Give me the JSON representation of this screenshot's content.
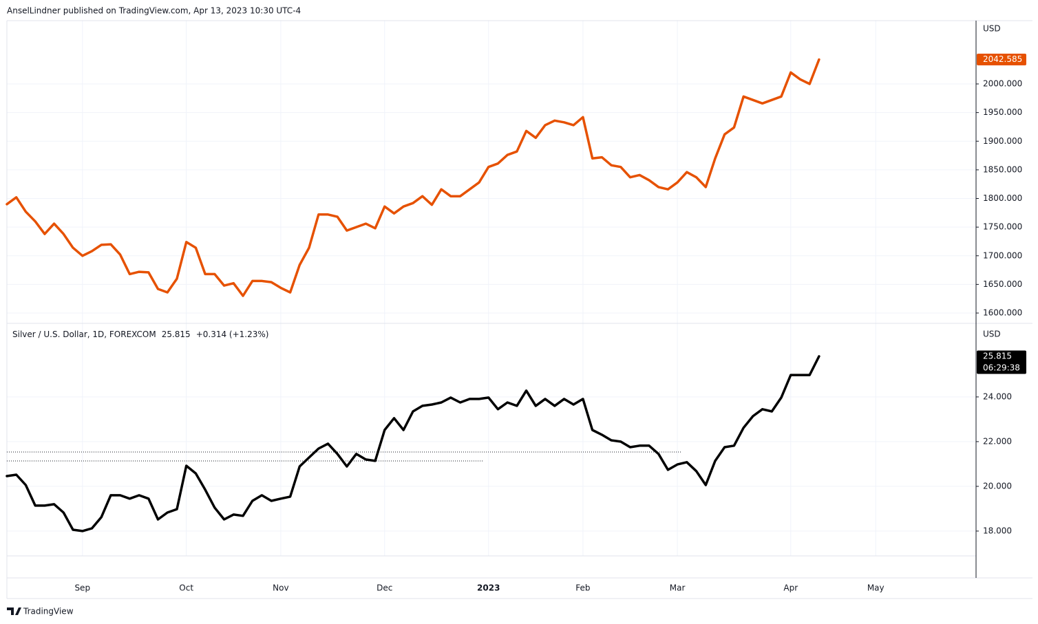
{
  "header": "AnselLindner published on TradingView.com, Apr 13, 2023 10:30 UTC-4",
  "footer": "TradingView",
  "chart_data": [
    {
      "type": "line",
      "y_axis_label": "USD",
      "series": [
        {
          "color": "#e65100",
          "values": [
            1790,
            1802,
            1777,
            1760,
            1738,
            1756,
            1738,
            1714,
            1700,
            1708,
            1719,
            1720,
            1702,
            1668,
            1672,
            1671,
            1642,
            1636,
            1660,
            1724,
            1714,
            1668,
            1668,
            1648,
            1652,
            1630,
            1656,
            1656,
            1654,
            1644,
            1636,
            1684,
            1714,
            1772,
            1772,
            1768,
            1744,
            1750,
            1756,
            1748,
            1786,
            1774,
            1786,
            1792,
            1804,
            1789,
            1816,
            1804,
            1804,
            1816,
            1828,
            1855,
            1861,
            1876,
            1882,
            1918,
            1906,
            1928,
            1936,
            1933,
            1928,
            1942,
            1870,
            1872,
            1858,
            1855,
            1837,
            1841,
            1832,
            1820,
            1816,
            1828,
            1846,
            1837,
            1820,
            1870,
            1912,
            1924,
            1978,
            1972,
            1966,
            1972,
            1978,
            2020,
            2008,
            2000,
            2042.585,
            null,
            null,
            null,
            null,
            null,
            null,
            null,
            null,
            null,
            null,
            null,
            null,
            null,
            null,
            null,
            null
          ]
        }
      ],
      "last_price_label": "2042.585",
      "ylim": [
        1582,
        2110.5
      ],
      "yticks": [
        {
          "value": 1600,
          "label": "1600.000"
        },
        {
          "value": 1650,
          "label": "1650.000"
        },
        {
          "value": 1700,
          "label": "1700.000"
        },
        {
          "value": 1750,
          "label": "1750.000"
        },
        {
          "value": 1800,
          "label": "1800.000"
        },
        {
          "value": 1850,
          "label": "1850.000"
        },
        {
          "value": 1900,
          "label": "1900.000"
        },
        {
          "value": 1950,
          "label": "1950.000"
        },
        {
          "value": 2000,
          "label": "2000.000"
        }
      ],
      "grid": true
    },
    {
      "type": "line",
      "y_axis_label": "USD",
      "categories": [
        null,
        null,
        null,
        null,
        null,
        null,
        null,
        null,
        "Sep",
        null,
        null,
        null,
        null,
        null,
        null,
        null,
        null,
        null,
        null,
        "Oct",
        null,
        null,
        null,
        null,
        null,
        null,
        null,
        null,
        null,
        "Nov",
        null,
        null,
        null,
        null,
        null,
        null,
        null,
        null,
        null,
        null,
        "Dec",
        null,
        null,
        null,
        null,
        null,
        null,
        null,
        null,
        null,
        null,
        "2023",
        null,
        null,
        null,
        null,
        null,
        null,
        null,
        null,
        null,
        "Feb",
        null,
        null,
        null,
        null,
        null,
        null,
        null,
        null,
        null,
        "Mar",
        null,
        null,
        null,
        null,
        null,
        null,
        null,
        null,
        null,
        null,
        null,
        "Apr",
        null,
        null,
        null,
        null,
        null,
        null,
        null,
        null,
        "May",
        null,
        null,
        null,
        null,
        null,
        null,
        null,
        null,
        null,
        null
      ],
      "series": [
        {
          "name": "Silver / U.S. Dollar, 1D, FOREXCOM",
          "color": "#000000",
          "values": [
            20.46,
            20.52,
            20.06,
            19.14,
            19.14,
            19.2,
            18.83,
            18.06,
            18.0,
            18.12,
            18.62,
            19.6,
            19.6,
            19.45,
            19.6,
            19.45,
            18.52,
            18.83,
            18.98,
            20.92,
            20.58,
            19.85,
            19.05,
            18.52,
            18.74,
            18.68,
            19.35,
            19.6,
            19.35,
            19.45,
            19.54,
            20.89,
            21.29,
            21.69,
            21.91,
            21.45,
            20.89,
            21.45,
            21.2,
            21.14,
            22.52,
            23.05,
            22.52,
            23.35,
            23.6,
            23.66,
            23.75,
            23.97,
            23.75,
            23.91,
            23.91,
            23.97,
            23.45,
            23.75,
            23.6,
            24.28,
            23.6,
            23.91,
            23.6,
            23.91,
            23.66,
            23.91,
            22.52,
            22.31,
            22.06,
            22.0,
            21.75,
            21.82,
            21.82,
            21.45,
            20.74,
            20.98,
            21.08,
            20.68,
            20.06,
            21.14,
            21.75,
            21.82,
            22.62,
            23.14,
            23.45,
            23.35,
            23.97,
            24.98,
            24.98,
            24.98,
            25.815,
            null,
            null,
            null,
            null,
            null,
            null,
            null,
            null,
            null,
            null,
            null,
            null,
            null,
            null,
            null,
            null
          ]
        }
      ],
      "legend_last": "25.815",
      "legend_change": "+0.314 (+1.23%)",
      "last_price_label": "25.815",
      "countdown": "06:29:38",
      "ylim": [
        16.89,
        27.29
      ],
      "yticks": [
        {
          "value": 18,
          "label": "18.000"
        },
        {
          "value": 20,
          "label": "20.000"
        },
        {
          "value": 22,
          "label": "22.000"
        },
        {
          "value": 24,
          "label": "24.000"
        }
      ],
      "grid": true
    }
  ]
}
